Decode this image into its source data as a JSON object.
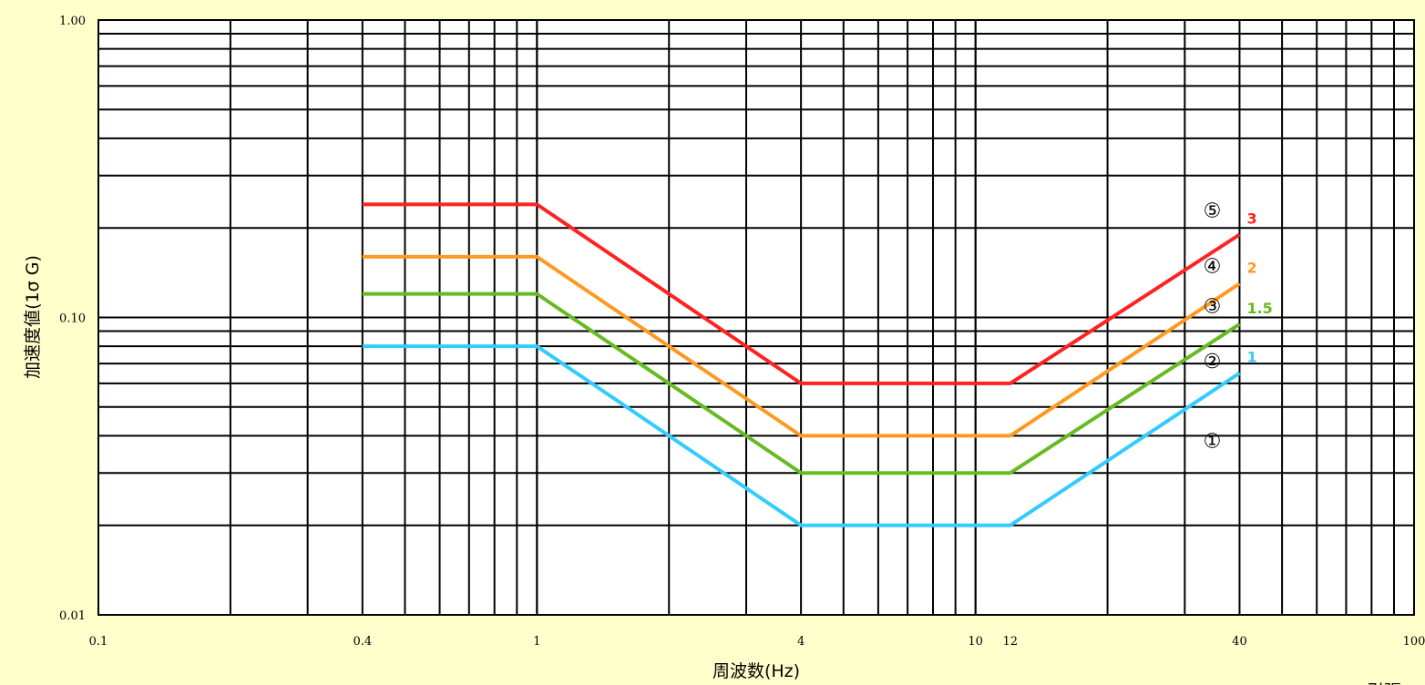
{
  "chart_data": {
    "type": "line",
    "x_scale": "log",
    "y_scale": "log",
    "xlim": [
      0.1,
      100
    ],
    "ylim": [
      0.01,
      1.0
    ],
    "xlabel": "周波数(Hz)",
    "ylabel": "加速度値(1σ G)",
    "grid": true,
    "x_tick_labels": [
      {
        "value": 0.1,
        "label": "0.1"
      },
      {
        "value": 0.4,
        "label": "0.4"
      },
      {
        "value": 1,
        "label": "1"
      },
      {
        "value": 4,
        "label": "4"
      },
      {
        "value": 10,
        "label": "10"
      },
      {
        "value": 12,
        "label": "12"
      },
      {
        "value": 40,
        "label": "40"
      },
      {
        "value": 100,
        "label": "100"
      }
    ],
    "y_tick_labels": [
      {
        "value": 0.01,
        "label": "0.01"
      },
      {
        "value": 0.1,
        "label": "0.10"
      },
      {
        "value": 1.0,
        "label": "1.00"
      }
    ],
    "series": [
      {
        "color": "#33CCFF",
        "end_label": "1",
        "circle_label": "①",
        "x": [
          0.4,
          1,
          4,
          12,
          40
        ],
        "y": [
          0.08,
          0.08,
          0.02,
          0.02,
          0.065
        ]
      },
      {
        "color": "#66BB22",
        "end_label": "1.5",
        "circle_label": "②",
        "x": [
          0.4,
          1,
          4,
          12,
          40
        ],
        "y": [
          0.12,
          0.12,
          0.03,
          0.03,
          0.095
        ]
      },
      {
        "color": "#FF9922",
        "end_label": "2",
        "circle_label": "③",
        "x": [
          0.4,
          1,
          4,
          12,
          40
        ],
        "y": [
          0.16,
          0.16,
          0.04,
          0.04,
          0.13
        ]
      },
      {
        "color": "#FF2222",
        "end_label": "3",
        "circle_label": "④",
        "x": [
          0.4,
          1,
          4,
          12,
          40
        ],
        "y": [
          0.24,
          0.24,
          0.06,
          0.06,
          0.19
        ]
      }
    ],
    "extra_circle_label": "⑤",
    "corner_text": "引張"
  }
}
